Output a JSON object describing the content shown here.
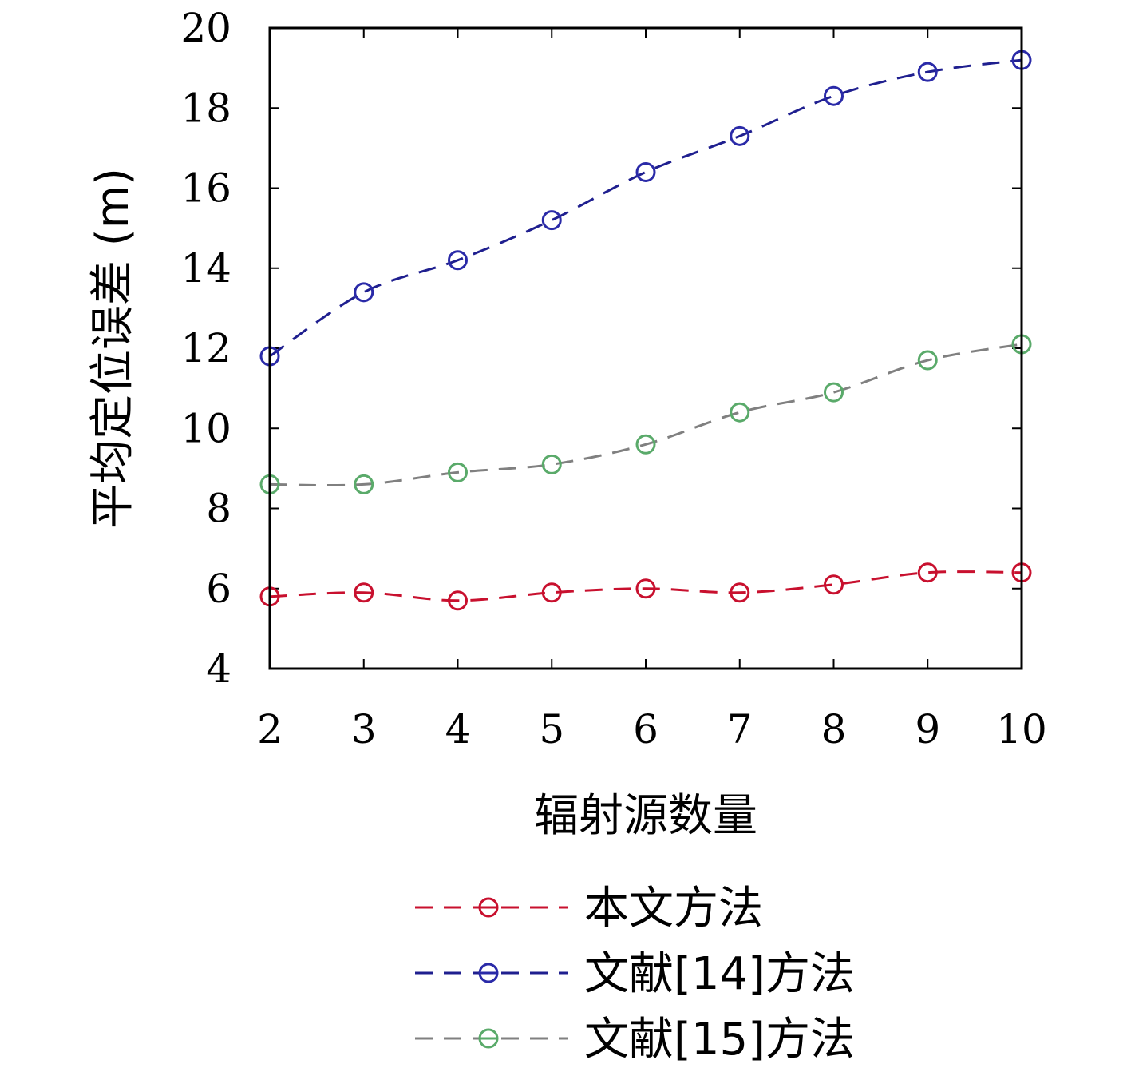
{
  "chart_data": {
    "type": "line",
    "title": "",
    "xlabel": "辐射源数量",
    "ylabel": "平均定位误差 (m)",
    "x": [
      2,
      3,
      4,
      5,
      6,
      7,
      8,
      9,
      10
    ],
    "xlim": [
      2,
      10
    ],
    "ylim": [
      4,
      20
    ],
    "xticks": [
      "2",
      "3",
      "4",
      "5",
      "6",
      "7",
      "8",
      "9",
      "10"
    ],
    "yticks": [
      "4",
      "6",
      "8",
      "10",
      "12",
      "14",
      "16",
      "18",
      "20"
    ],
    "grid": false,
    "legend_position": "bottom",
    "series": [
      {
        "name": "本文方法",
        "values": [
          5.8,
          5.9,
          5.7,
          5.9,
          6.0,
          5.9,
          6.1,
          6.4,
          6.4
        ],
        "line_color": "#c8102e",
        "marker_color": "#c8102e",
        "line_style": "dashed",
        "marker": "circle"
      },
      {
        "name": "文献[14]方法",
        "values": [
          11.8,
          13.4,
          14.2,
          15.2,
          16.4,
          17.3,
          18.3,
          18.9,
          19.2
        ],
        "line_color": "#1f1f8f",
        "marker_color": "#2a2aa8",
        "line_style": "dashed",
        "marker": "circle"
      },
      {
        "name": "文献[15]方法",
        "values": [
          8.6,
          8.6,
          8.9,
          9.1,
          9.6,
          10.4,
          10.9,
          11.7,
          12.1
        ],
        "line_color": "#808080",
        "marker_color": "#5aaa6a",
        "line_style": "dashed",
        "marker": "circle"
      }
    ]
  }
}
